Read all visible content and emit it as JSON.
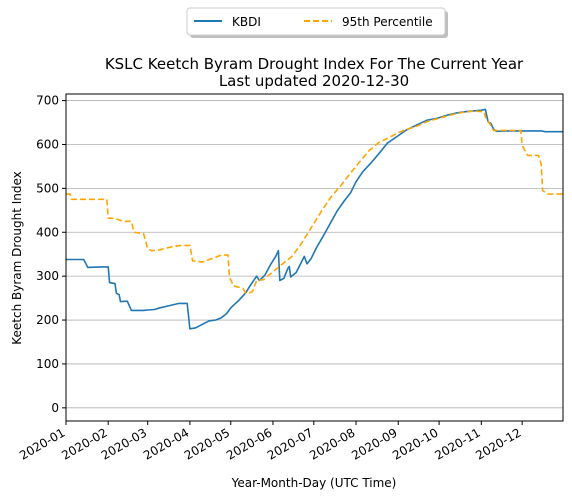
{
  "chart_data": {
    "type": "line",
    "title": "KSLC Keetch Byram Drought Index For The Current Year",
    "subtitle": "Last updated 2020-12-30",
    "xlabel": "Year-Month-Day (UTC Time)",
    "ylabel": "Keetch Byram Drought Index",
    "xlim": [
      "2020-01-01",
      "2020-12-31"
    ],
    "ylim": [
      -30,
      715
    ],
    "x_ticks": [
      "2020-01",
      "2020-02",
      "2020-03",
      "2020-04",
      "2020-05",
      "2020-06",
      "2020-07",
      "2020-08",
      "2020-09",
      "2020-10",
      "2020-11",
      "2020-12"
    ],
    "y_ticks": [
      0,
      100,
      200,
      300,
      400,
      500,
      600,
      700
    ],
    "grid": "y",
    "legend_position": "top-center (outside)",
    "series": [
      {
        "name": "KBDI",
        "color": "#1f77b4",
        "style": "solid",
        "points": [
          [
            "2020-01-01",
            338
          ],
          [
            "2020-01-14",
            338
          ],
          [
            "2020-01-17",
            320
          ],
          [
            "2020-01-27",
            321
          ],
          [
            "2020-02-01",
            321
          ],
          [
            "2020-02-02",
            285
          ],
          [
            "2020-02-06",
            283
          ],
          [
            "2020-02-07",
            261
          ],
          [
            "2020-02-09",
            258
          ],
          [
            "2020-02-10",
            242
          ],
          [
            "2020-02-15",
            243
          ],
          [
            "2020-02-18",
            222
          ],
          [
            "2020-02-27",
            222
          ],
          [
            "2020-03-01",
            223
          ],
          [
            "2020-03-06",
            224
          ],
          [
            "2020-03-10",
            228
          ],
          [
            "2020-03-17",
            233
          ],
          [
            "2020-03-24",
            238
          ],
          [
            "2020-03-30",
            238
          ],
          [
            "2020-04-01",
            180
          ],
          [
            "2020-04-05",
            182
          ],
          [
            "2020-04-10",
            190
          ],
          [
            "2020-04-15",
            198
          ],
          [
            "2020-04-20",
            200
          ],
          [
            "2020-04-24",
            205
          ],
          [
            "2020-04-28",
            215
          ],
          [
            "2020-05-01",
            228
          ],
          [
            "2020-05-07",
            245
          ],
          [
            "2020-05-12",
            262
          ],
          [
            "2020-05-16",
            282
          ],
          [
            "2020-05-20",
            300
          ],
          [
            "2020-05-22",
            290
          ],
          [
            "2020-05-26",
            302
          ],
          [
            "2020-05-30",
            325
          ],
          [
            "2020-06-03",
            345
          ],
          [
            "2020-06-05",
            358
          ],
          [
            "2020-06-06",
            290
          ],
          [
            "2020-06-09",
            295
          ],
          [
            "2020-06-12",
            318
          ],
          [
            "2020-06-13",
            322
          ],
          [
            "2020-06-14",
            298
          ],
          [
            "2020-06-18",
            308
          ],
          [
            "2020-06-24",
            345
          ],
          [
            "2020-06-26",
            328
          ],
          [
            "2020-06-29",
            340
          ],
          [
            "2020-07-03",
            365
          ],
          [
            "2020-07-08",
            392
          ],
          [
            "2020-07-13",
            420
          ],
          [
            "2020-07-18",
            448
          ],
          [
            "2020-07-23",
            470
          ],
          [
            "2020-07-28",
            490
          ],
          [
            "2020-08-01",
            515
          ],
          [
            "2020-08-06",
            538
          ],
          [
            "2020-08-12",
            558
          ],
          [
            "2020-08-18",
            580
          ],
          [
            "2020-08-24",
            603
          ],
          [
            "2020-08-31",
            618
          ],
          [
            "2020-09-07",
            633
          ],
          [
            "2020-09-15",
            645
          ],
          [
            "2020-09-22",
            655
          ],
          [
            "2020-09-30",
            660
          ],
          [
            "2020-10-07",
            667
          ],
          [
            "2020-10-14",
            672
          ],
          [
            "2020-10-21",
            675
          ],
          [
            "2020-10-28",
            677
          ],
          [
            "2020-11-01",
            678
          ],
          [
            "2020-11-04",
            680
          ],
          [
            "2020-11-06",
            652
          ],
          [
            "2020-11-08",
            648
          ],
          [
            "2020-11-10",
            635
          ],
          [
            "2020-11-12",
            630
          ],
          [
            "2020-11-20",
            631
          ],
          [
            "2020-12-01",
            631
          ],
          [
            "2020-12-15",
            631
          ],
          [
            "2020-12-18",
            629
          ],
          [
            "2020-12-31",
            629
          ]
        ]
      },
      {
        "name": "95th Percentile",
        "color": "#ffa500",
        "style": "dashed",
        "points": [
          [
            "2020-01-01",
            487
          ],
          [
            "2020-01-04",
            487
          ],
          [
            "2020-01-05",
            475
          ],
          [
            "2020-01-14",
            475
          ],
          [
            "2020-01-31",
            475
          ],
          [
            "2020-02-01",
            432
          ],
          [
            "2020-02-05",
            432
          ],
          [
            "2020-02-10",
            427
          ],
          [
            "2020-02-11",
            425
          ],
          [
            "2020-02-18",
            425
          ],
          [
            "2020-02-20",
            400
          ],
          [
            "2020-02-27",
            397
          ],
          [
            "2020-03-01",
            362
          ],
          [
            "2020-03-04",
            358
          ],
          [
            "2020-03-10",
            360
          ],
          [
            "2020-03-20",
            368
          ],
          [
            "2020-03-26",
            370
          ],
          [
            "2020-04-01",
            370
          ],
          [
            "2020-04-03",
            335
          ],
          [
            "2020-04-10",
            332
          ],
          [
            "2020-04-17",
            340
          ],
          [
            "2020-04-24",
            348
          ],
          [
            "2020-04-29",
            348
          ],
          [
            "2020-04-30",
            298
          ],
          [
            "2020-05-03",
            278
          ],
          [
            "2020-05-10",
            272
          ],
          [
            "2020-05-12",
            262
          ],
          [
            "2020-05-15",
            262
          ],
          [
            "2020-05-17",
            265
          ],
          [
            "2020-05-20",
            290
          ],
          [
            "2020-05-25",
            292
          ],
          [
            "2020-06-01",
            310
          ],
          [
            "2020-06-08",
            328
          ],
          [
            "2020-06-15",
            345
          ],
          [
            "2020-06-22",
            375
          ],
          [
            "2020-06-30",
            415
          ],
          [
            "2020-07-07",
            450
          ],
          [
            "2020-07-14",
            482
          ],
          [
            "2020-07-21",
            507
          ],
          [
            "2020-07-28",
            535
          ],
          [
            "2020-08-04",
            562
          ],
          [
            "2020-08-11",
            587
          ],
          [
            "2020-08-18",
            605
          ],
          [
            "2020-08-25",
            615
          ],
          [
            "2020-09-01",
            627
          ],
          [
            "2020-09-08",
            635
          ],
          [
            "2020-09-15",
            642
          ],
          [
            "2020-09-22",
            652
          ],
          [
            "2020-09-29",
            658
          ],
          [
            "2020-10-06",
            664
          ],
          [
            "2020-10-13",
            670
          ],
          [
            "2020-10-20",
            674
          ],
          [
            "2020-10-27",
            676
          ],
          [
            "2020-11-01",
            675
          ],
          [
            "2020-11-03",
            675
          ],
          [
            "2020-11-04",
            663
          ],
          [
            "2020-11-07",
            648
          ],
          [
            "2020-11-10",
            632
          ],
          [
            "2020-11-30",
            632
          ],
          [
            "2020-12-01",
            598
          ],
          [
            "2020-12-05",
            575
          ],
          [
            "2020-12-13",
            575
          ],
          [
            "2020-12-15",
            555
          ],
          [
            "2020-12-16",
            495
          ],
          [
            "2020-12-20",
            487
          ],
          [
            "2020-12-31",
            487
          ]
        ]
      }
    ]
  }
}
